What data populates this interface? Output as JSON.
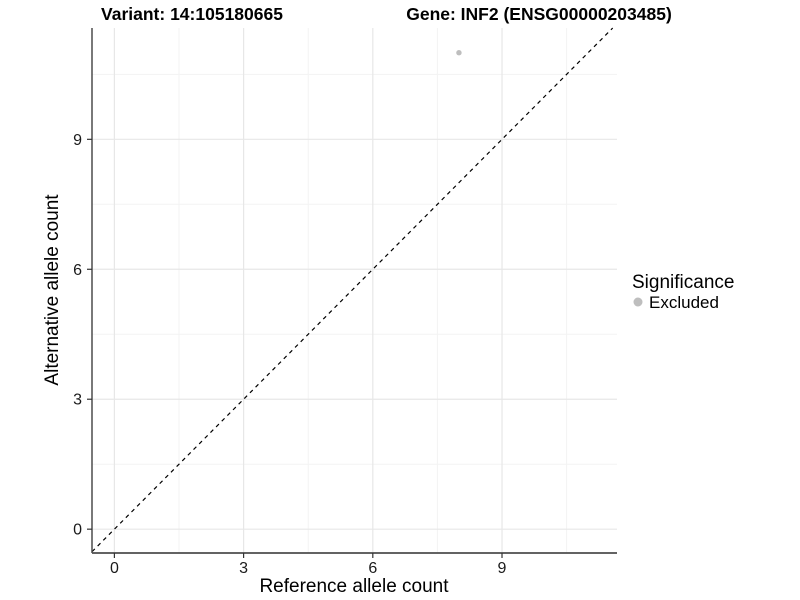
{
  "titles": {
    "variant": "Variant: 14:105180665",
    "gene": "Gene: INF2 (ENSG00000203485)"
  },
  "chart_data": {
    "type": "scatter",
    "title": "Variant: 14:105180665   Gene: INF2 (ENSG00000203485)",
    "xlabel": "Reference allele count",
    "ylabel": "Alternative allele count",
    "xlim": [
      -0.52,
      11.67
    ],
    "ylim": [
      -0.55,
      11.57
    ],
    "xticks": [
      0,
      3,
      6,
      9
    ],
    "yticks": [
      0,
      3,
      6,
      9
    ],
    "x_minor_ticks": [
      1.5,
      4.5,
      7.5,
      10.5
    ],
    "y_minor_ticks": [
      1.5,
      4.5,
      7.5,
      10.5
    ],
    "grid": true,
    "series": [
      {
        "name": "Excluded",
        "color": "#bebebe",
        "points": [
          {
            "x": 8,
            "y": 11
          }
        ]
      }
    ],
    "reference_line": {
      "type": "identity",
      "equation": "y = x",
      "style": "dashed",
      "color": "#000000"
    },
    "legend": {
      "title": "Significance",
      "position": "right",
      "items": [
        {
          "label": "Excluded",
          "color": "#bebebe"
        }
      ]
    }
  },
  "colors": {
    "background": "#ffffff",
    "major_grid": "#e7e7e7",
    "minor_grid": "#f3f3f3",
    "axis_line": "#4d4d4d",
    "tick_mark": "#333333",
    "tick_label": "#1a1a1a",
    "axis_title": "#000000",
    "point": "#bebebe"
  }
}
